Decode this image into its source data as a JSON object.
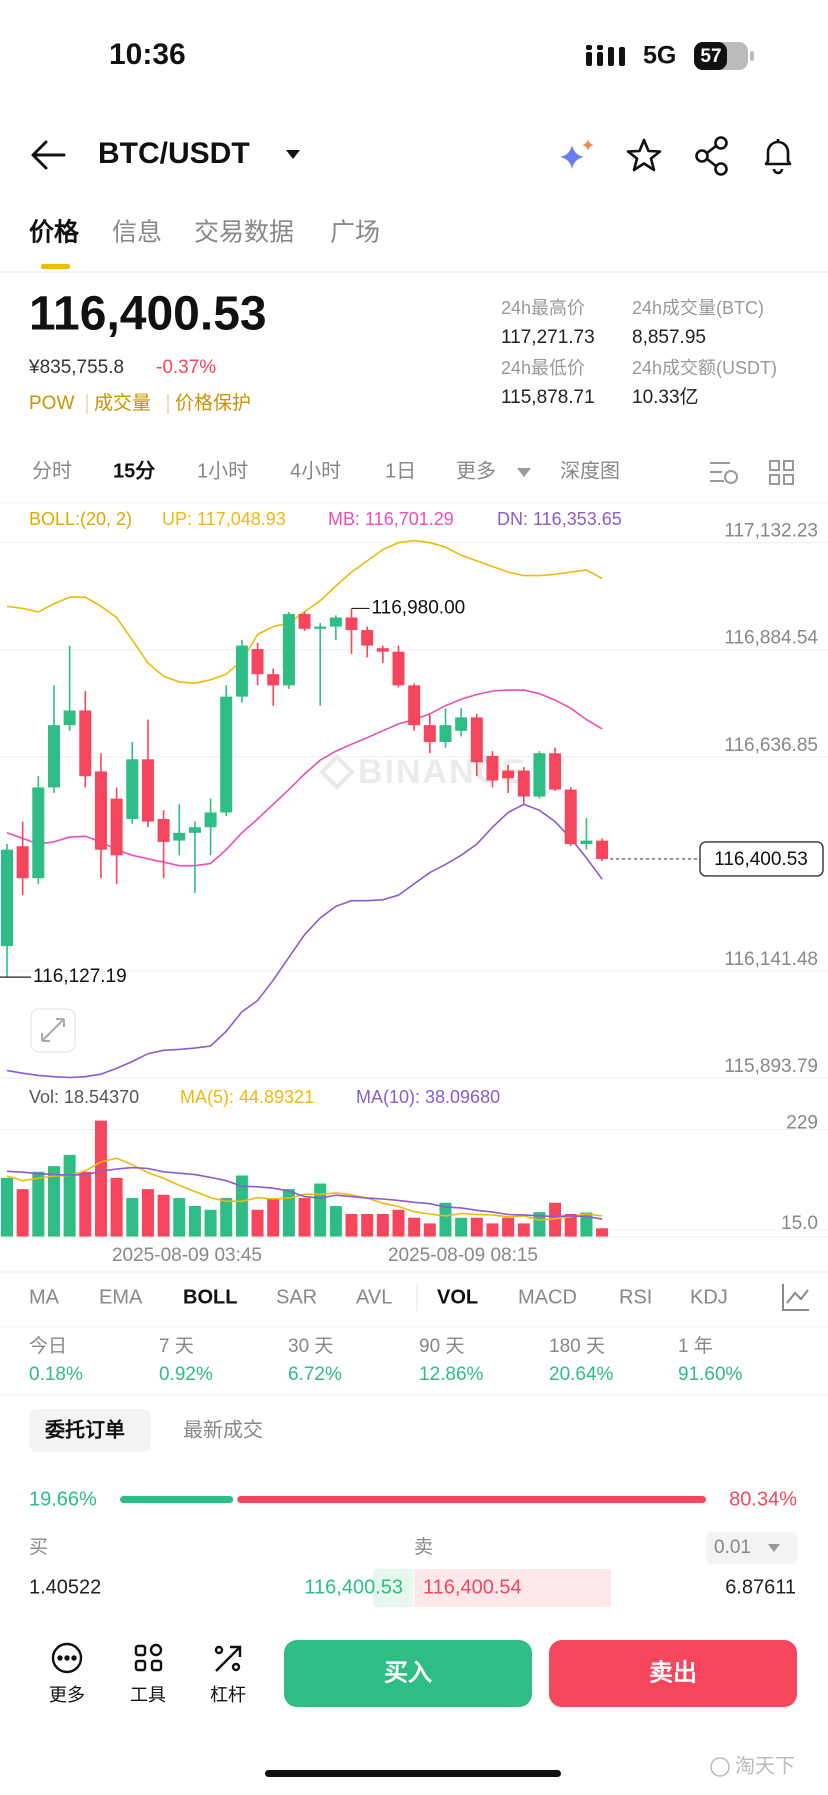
{
  "status_bar": {
    "time": "10:36",
    "network": "5G",
    "battery": "57"
  },
  "header": {
    "pair": "BTC/USDT"
  },
  "tabs": [
    "价格",
    "信息",
    "交易数据",
    "广场"
  ],
  "price": {
    "last": "116,400.53",
    "cny": "¥835,755.8",
    "change": "-0.37%",
    "tags": [
      "POW",
      "成交量",
      "价格保护"
    ]
  },
  "stats": [
    {
      "label": "24h最高价",
      "value": "117,271.73"
    },
    {
      "label": "24h成交量(BTC)",
      "value": "8,857.95"
    },
    {
      "label": "24h最低价",
      "value": "115,878.71"
    },
    {
      "label": "24h成交额(USDT)",
      "value": "10.33亿"
    }
  ],
  "intervals": [
    "分时",
    "15分",
    "1小时",
    "4小时",
    "1日",
    "更多",
    "深度图"
  ],
  "price_chart": {
    "type": "candlestick",
    "watermark": "BINANCE",
    "legend": "BOLL:(20, 2)",
    "colors": {
      "up": "#2ebd85",
      "down": "#f6465d"
    },
    "ohlc": [
      [
        116199,
        116435,
        116127.19,
        116422
      ],
      [
        116430,
        116487,
        116317,
        116356
      ],
      [
        116356,
        116592,
        116343,
        116566
      ],
      [
        116566,
        116802,
        116553,
        116710
      ],
      [
        116710,
        116894,
        116697,
        116744
      ],
      [
        116744,
        116789,
        116566,
        116592
      ],
      [
        116603,
        116645,
        116356,
        116422
      ],
      [
        116540,
        116566,
        116343,
        116409
      ],
      [
        116493,
        116671,
        116482,
        116631
      ],
      [
        116631,
        116723,
        116474,
        116487
      ],
      [
        116493,
        116513,
        116356,
        116440
      ],
      [
        116443,
        116527,
        116409,
        116461
      ],
      [
        116461,
        116487,
        116322,
        116474
      ],
      [
        116474,
        116540,
        116409,
        116508
      ],
      [
        116508,
        116802,
        116500,
        116776
      ],
      [
        116776,
        116907,
        116762,
        116894
      ],
      [
        116886,
        116901,
        116802,
        116828
      ],
      [
        116828,
        116841,
        116755,
        116802
      ],
      [
        116802,
        116972,
        116794,
        116967
      ],
      [
        116967,
        116972,
        116928,
        116933
      ],
      [
        116933,
        116946,
        116755,
        116938
      ],
      [
        116938,
        116964,
        116907,
        116959
      ],
      [
        116959,
        116980,
        116875,
        116930
      ],
      [
        116930,
        116938,
        116867,
        116894
      ],
      [
        116888,
        116894,
        116854,
        116880
      ],
      [
        116880,
        116894,
        116797,
        116802
      ],
      [
        116802,
        116807,
        116697,
        116710
      ],
      [
        116710,
        116736,
        116645,
        116671
      ],
      [
        116671,
        116749,
        116658,
        116710
      ],
      [
        116697,
        116749,
        116684,
        116728
      ],
      [
        116728,
        116736,
        116592,
        116624
      ],
      [
        116639,
        116650,
        116566,
        116582
      ],
      [
        116605,
        116618,
        116553,
        116587
      ],
      [
        116605,
        116613,
        116527,
        116545
      ],
      [
        116545,
        116650,
        116540,
        116645
      ],
      [
        116645,
        116658,
        116558,
        116561
      ],
      [
        116561,
        116566,
        116430,
        116435
      ],
      [
        116435,
        116495,
        116422,
        116443
      ],
      [
        116443,
        116448,
        116396,
        116400.53
      ]
    ],
    "series": [
      {
        "name": "UP: 117,048.93",
        "color": "#f0b90b",
        "values": [
          116985,
          116980,
          116972,
          116991,
          117006,
          117006,
          116985,
          116959,
          116907,
          116854,
          116823,
          116810,
          116807,
          116815,
          116828,
          116859,
          116920,
          116938,
          116946,
          116972,
          116998,
          117032,
          117064,
          117090,
          117116,
          117132,
          117137,
          117132,
          117122,
          117103,
          117090,
          117077,
          117064,
          117056,
          117056,
          117059,
          117064,
          117069,
          117048.93
        ]
      },
      {
        "name": "MB: 116,701.29",
        "color": "#e94ebb",
        "values": [
          116461,
          116448,
          116435,
          116440,
          116451,
          116453,
          116440,
          116422,
          116409,
          116401,
          116393,
          116385,
          116385,
          116390,
          116422,
          116461,
          116493,
          116527,
          116561,
          116597,
          116629,
          116650,
          116666,
          116681,
          116697,
          116713,
          116723,
          116736,
          116755,
          116770,
          116781,
          116789,
          116791,
          116791,
          116783,
          116768,
          116749,
          116723,
          116701.29
        ]
      },
      {
        "name": "DN: 116,353.65",
        "color": "#8a5cd0",
        "values": [
          115911,
          115905,
          115900,
          115897,
          115895,
          115897,
          115903,
          115916,
          115932,
          115950,
          115958,
          115960,
          115963,
          115968,
          116002,
          116047,
          116073,
          116120,
          116173,
          116225,
          116264,
          116291,
          116304,
          116304,
          116306,
          116317,
          116343,
          116369,
          116388,
          116409,
          116435,
          116474,
          116508,
          116527,
          116513,
          116487,
          116448,
          116403,
          116353.65
        ]
      }
    ],
    "ylim": [
      115880,
      117210
    ],
    "yticks": [
      {
        "value": 117132.23,
        "label": "117,132.23"
      },
      {
        "value": 116884.54,
        "label": "116,884.54"
      },
      {
        "value": 116636.85,
        "label": "116,636.85"
      },
      {
        "value": 116141.48,
        "label": "116,141.48"
      },
      {
        "value": 115893.79,
        "label": "115,893.79"
      }
    ],
    "current": {
      "value": 116400.53,
      "label": "116,400.53"
    },
    "high_label": "116,980.00",
    "low_label": "116,127.19"
  },
  "volume_chart": {
    "type": "bar",
    "label": "Vol: 18.54370",
    "values": [
      126,
      102,
      139,
      151,
      175,
      139,
      248,
      126,
      83,
      102,
      90,
      83,
      66,
      58,
      83,
      131,
      58,
      83,
      102,
      83,
      114,
      66,
      49,
      49,
      49,
      58,
      41,
      29,
      73,
      41,
      41,
      29,
      41,
      29,
      53,
      73,
      49,
      52,
      18.5437
    ],
    "series": [
      {
        "name": "MA(5): 44.89321",
        "color": "#f0b90b",
        "values": [
          130,
          120,
          125,
          130,
          131,
          141,
          160,
          168,
          154,
          137,
          125,
          110,
          97,
          84,
          76,
          76,
          84,
          81,
          83,
          91,
          91,
          94,
          90,
          83,
          72,
          65,
          54,
          49,
          45,
          50,
          48,
          47,
          43,
          45,
          36,
          39,
          43,
          49,
          44.89321
        ]
      },
      {
        "name": "MA(10): 38.09680",
        "color": "#8a5cd0",
        "values": [
          140,
          138,
          135,
          133,
          132,
          133,
          140,
          145,
          148,
          146,
          139,
          136,
          133,
          127,
          120,
          108,
          107,
          104,
          98,
          86,
          83,
          89,
          86,
          83,
          81,
          78,
          74,
          71,
          64,
          62,
          57,
          53,
          48,
          47,
          45,
          44,
          45,
          44,
          38.0968
        ]
      }
    ],
    "ylim": [
      0,
      260
    ],
    "yticks": [
      229,
      {
        "value": 15,
        "label": "15.0"
      }
    ],
    "x_labels": [
      "2025-08-09 03:45",
      "2025-08-09 08:15"
    ]
  },
  "indicators": [
    "MA",
    "EMA",
    "BOLL",
    "SAR",
    "AVL",
    "VOL",
    "MACD",
    "RSI",
    "KDJ"
  ],
  "performance": [
    {
      "period": "今日",
      "change": "0.18%"
    },
    {
      "period": "7 天",
      "change": "0.92%"
    },
    {
      "period": "30 天",
      "change": "6.72%"
    },
    {
      "period": "90 天",
      "change": "12.86%"
    },
    {
      "period": "180 天",
      "change": "20.64%"
    },
    {
      "period": "1 年",
      "change": "91.60%"
    }
  ],
  "order_tabs": [
    "委托订单",
    "最新成交"
  ],
  "depth_ratio": {
    "buy": {
      "value": 19.66,
      "label": "19.66%"
    },
    "sell": {
      "value": 80.34,
      "label": "80.34%"
    }
  },
  "order_book": {
    "buy_header": "买",
    "sell_header": "卖",
    "precision": "0.01",
    "rows": [
      {
        "bid_qty": "1.40522",
        "bid": "116,400.53",
        "ask": "116,400.54",
        "ask_qty": "6.87611"
      }
    ]
  },
  "bottom_nav": [
    "更多",
    "工具",
    "杠杆"
  ],
  "actions": {
    "buy": "买入",
    "sell": "卖出"
  },
  "watermark": "淘天下"
}
